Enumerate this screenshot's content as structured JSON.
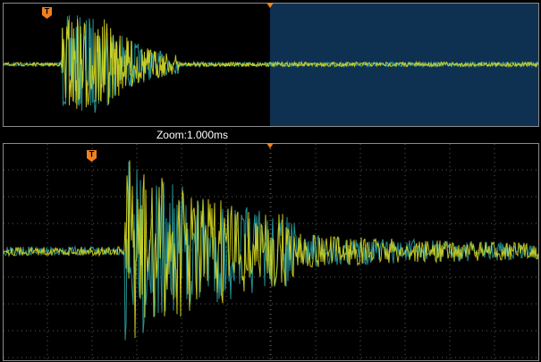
{
  "zoom_label": "Zoom:1.000ms",
  "trigger_marker": "T"
}
